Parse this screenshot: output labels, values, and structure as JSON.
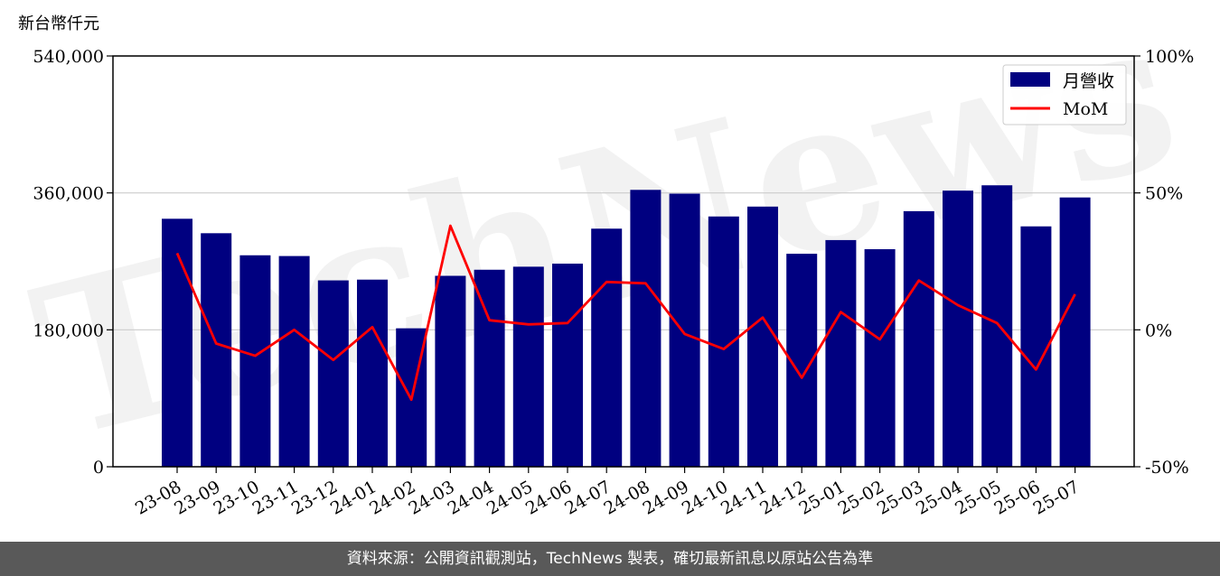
{
  "chart_data": {
    "type": "bar",
    "ylabel": "新台幣仟元",
    "categories": [
      "23-08",
      "23-09",
      "23-10",
      "23-11",
      "23-12",
      "24-01",
      "24-02",
      "24-03",
      "24-04",
      "24-05",
      "24-06",
      "24-07",
      "24-08",
      "24-09",
      "24-10",
      "24-11",
      "24-12",
      "25-01",
      "25-02",
      "25-03",
      "25-04",
      "25-05",
      "25-06",
      "25-07"
    ],
    "series": [
      {
        "name": "月營收",
        "type": "bar",
        "axis": "left",
        "color": "#000080",
        "values": [
          326000,
          307000,
          278000,
          277000,
          245000,
          246000,
          182000,
          251000,
          259000,
          263000,
          267000,
          313000,
          364000,
          359000,
          329000,
          342000,
          280000,
          298000,
          286000,
          336000,
          363000,
          370000,
          316000,
          354000
        ]
      },
      {
        "name": "MoM",
        "type": "line",
        "axis": "right",
        "color": "#ff0000",
        "values": [
          28,
          -5,
          -9.5,
          0,
          -11,
          1,
          -25.5,
          38,
          3.5,
          2,
          2.5,
          17.5,
          17,
          -1.5,
          -7,
          4.5,
          -17.5,
          6.5,
          -3.5,
          18,
          9,
          2.5,
          -14.5,
          13
        ]
      }
    ],
    "ylim": [
      0,
      540000
    ],
    "yticks": [
      "0",
      "180,000",
      "360,000",
      "540,000"
    ],
    "y2lim": [
      -50,
      100
    ],
    "y2ticks": [
      "-50%",
      "0%",
      "50%",
      "100%"
    ],
    "grid": "horizontal",
    "legend_position": "top-right",
    "watermark": "TechNews"
  },
  "footer": {
    "text": "資料來源：公開資訊觀測站，TechNews 製表，確切最新訊息以原站公告為準"
  }
}
